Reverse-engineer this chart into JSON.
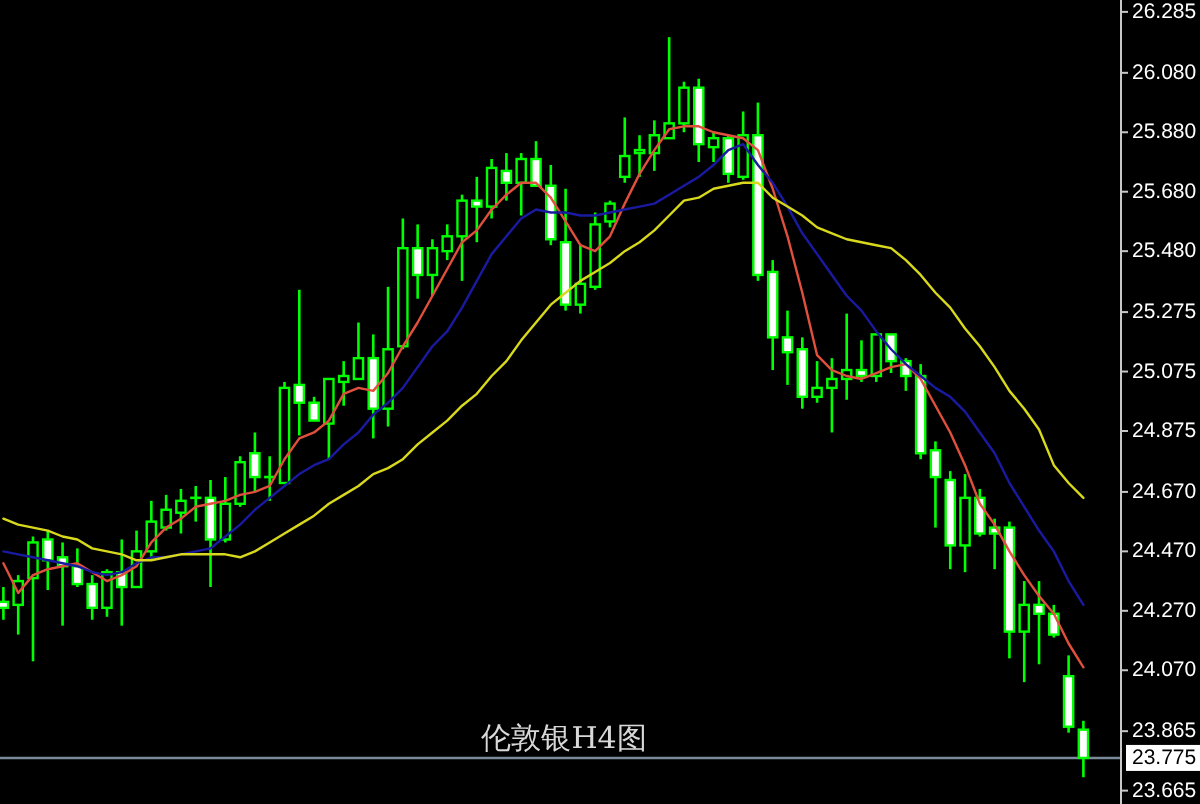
{
  "chart_data": {
    "type": "candlestick",
    "title": "伦敦银H4图",
    "color": "#00ff00",
    "categories": [
      null,
      null,
      null,
      null,
      null,
      null,
      null,
      null,
      null,
      null,
      null,
      null,
      null,
      null,
      null,
      null,
      null,
      null,
      null,
      null,
      null,
      null,
      null,
      null,
      null,
      null,
      null,
      null,
      null,
      null,
      null,
      null,
      null,
      null,
      null,
      null,
      null,
      null,
      null,
      null,
      null,
      null,
      null,
      null,
      null,
      null,
      null,
      null,
      null,
      null,
      null,
      null,
      null,
      null,
      null,
      null,
      null,
      null,
      null,
      null,
      null,
      null,
      null,
      null,
      null,
      null,
      null,
      null,
      null,
      null,
      null,
      null,
      null,
      null
    ],
    "ohlc": [
      [
        24.3,
        24.35,
        24.24,
        24.28
      ],
      [
        24.29,
        24.39,
        24.19,
        24.37
      ],
      [
        24.38,
        24.52,
        24.1,
        24.5
      ],
      [
        24.51,
        24.54,
        24.34,
        24.44
      ],
      [
        24.45,
        24.5,
        24.22,
        24.42
      ],
      [
        24.42,
        24.48,
        24.35,
        24.36
      ],
      [
        24.36,
        24.39,
        24.24,
        24.28
      ],
      [
        24.28,
        24.41,
        24.25,
        24.4
      ],
      [
        24.4,
        24.51,
        24.22,
        24.35
      ],
      [
        24.35,
        24.54,
        24.35,
        24.47
      ],
      [
        24.47,
        24.64,
        24.44,
        24.57
      ],
      [
        24.55,
        24.66,
        24.54,
        24.61
      ],
      [
        24.6,
        24.68,
        24.53,
        24.64
      ],
      [
        24.65,
        24.69,
        24.57,
        24.65
      ],
      [
        24.65,
        24.71,
        24.35,
        24.51
      ],
      [
        24.51,
        24.72,
        24.5,
        24.63
      ],
      [
        24.63,
        24.79,
        24.62,
        24.77
      ],
      [
        24.8,
        24.87,
        24.67,
        24.72
      ],
      [
        24.72,
        24.79,
        24.64,
        24.72
      ],
      [
        24.7,
        25.04,
        24.7,
        25.02
      ],
      [
        25.03,
        25.35,
        24.86,
        24.97
      ],
      [
        24.97,
        24.99,
        24.91,
        24.91
      ],
      [
        24.9,
        25.05,
        24.78,
        25.05
      ],
      [
        25.04,
        25.11,
        24.96,
        25.06
      ],
      [
        25.05,
        25.24,
        25.05,
        25.12
      ],
      [
        25.12,
        25.2,
        24.85,
        24.95
      ],
      [
        24.95,
        25.36,
        24.89,
        25.15
      ],
      [
        25.16,
        25.59,
        25.15,
        25.49
      ],
      [
        25.49,
        25.57,
        25.32,
        25.4
      ],
      [
        25.4,
        25.52,
        25.33,
        25.49
      ],
      [
        25.48,
        25.57,
        25.45,
        25.53
      ],
      [
        25.53,
        25.67,
        25.38,
        25.65
      ],
      [
        25.65,
        25.73,
        25.51,
        25.63
      ],
      [
        25.63,
        25.79,
        25.59,
        25.76
      ],
      [
        25.75,
        25.81,
        25.65,
        25.71
      ],
      [
        25.71,
        25.81,
        25.6,
        25.79
      ],
      [
        25.79,
        25.85,
        25.7,
        25.7
      ],
      [
        25.7,
        25.77,
        25.5,
        25.52
      ],
      [
        25.51,
        25.69,
        25.28,
        25.3
      ],
      [
        25.3,
        25.5,
        25.27,
        25.37
      ],
      [
        25.36,
        25.61,
        25.35,
        25.57
      ],
      [
        25.58,
        25.65,
        25.56,
        25.64
      ],
      [
        25.73,
        25.93,
        25.71,
        25.8
      ],
      [
        25.81,
        25.87,
        25.73,
        25.82
      ],
      [
        25.81,
        25.92,
        25.75,
        25.87
      ],
      [
        25.86,
        26.2,
        25.86,
        25.91
      ],
      [
        25.91,
        26.05,
        25.88,
        26.03
      ],
      [
        26.03,
        26.06,
        25.78,
        25.84
      ],
      [
        25.83,
        25.88,
        25.78,
        25.86
      ],
      [
        25.86,
        25.87,
        25.71,
        25.74
      ],
      [
        25.73,
        25.95,
        25.72,
        25.87
      ],
      [
        25.87,
        25.98,
        25.38,
        25.4
      ],
      [
        25.41,
        25.45,
        25.08,
        25.19
      ],
      [
        25.19,
        25.28,
        25.03,
        25.14
      ],
      [
        25.15,
        25.19,
        24.95,
        24.99
      ],
      [
        24.99,
        25.11,
        24.97,
        25.02
      ],
      [
        25.02,
        25.12,
        24.87,
        25.05
      ],
      [
        25.05,
        25.27,
        24.98,
        25.08
      ],
      [
        25.08,
        25.18,
        25.04,
        25.06
      ],
      [
        25.06,
        25.2,
        25.04,
        25.2
      ],
      [
        25.2,
        25.2,
        25.07,
        25.11
      ],
      [
        25.11,
        25.12,
        25.01,
        25.06
      ],
      [
        25.06,
        25.1,
        24.78,
        24.8
      ],
      [
        24.81,
        24.84,
        24.55,
        24.72
      ],
      [
        24.71,
        24.74,
        24.41,
        24.49
      ],
      [
        24.49,
        24.73,
        24.4,
        24.65
      ],
      [
        24.65,
        24.68,
        24.52,
        24.53
      ],
      [
        24.55,
        24.58,
        24.41,
        24.53
      ],
      [
        24.55,
        24.57,
        24.11,
        24.2
      ],
      [
        24.2,
        24.37,
        24.03,
        24.29
      ],
      [
        24.29,
        24.37,
        24.09,
        24.26
      ],
      [
        24.26,
        24.29,
        24.18,
        24.19
      ],
      [
        24.05,
        24.12,
        23.86,
        23.88
      ],
      [
        23.87,
        23.9,
        23.71,
        23.775
      ]
    ],
    "series": [
      {
        "type": "line",
        "color": "#e0503c",
        "values": [
          24.43,
          24.33,
          24.39,
          24.41,
          24.42,
          24.43,
          24.4,
          24.37,
          24.39,
          24.42,
          24.5,
          24.55,
          24.58,
          24.62,
          24.63,
          24.64,
          24.66,
          24.67,
          24.69,
          24.78,
          24.85,
          24.87,
          24.91,
          25.0,
          25.02,
          25.01,
          25.07,
          25.16,
          25.24,
          25.33,
          25.42,
          25.51,
          25.55,
          25.62,
          25.67,
          25.71,
          25.71,
          25.66,
          25.58,
          25.5,
          25.48,
          25.53,
          25.64,
          25.74,
          25.82,
          25.89,
          25.9,
          25.9,
          25.88,
          25.87,
          25.86,
          25.82,
          25.69,
          25.53,
          25.34,
          25.13,
          25.08,
          25.06,
          25.05,
          25.07,
          25.09,
          25.1,
          25.05,
          24.96,
          24.87,
          24.76,
          24.63,
          24.56,
          24.47,
          24.39,
          24.32,
          24.26,
          24.16,
          24.08
        ]
      },
      {
        "type": "line",
        "color": "#1a1aa0",
        "values": [
          24.47,
          24.46,
          24.45,
          24.44,
          24.43,
          24.42,
          24.4,
          24.39,
          24.4,
          24.43,
          24.45,
          24.45,
          24.46,
          24.47,
          24.48,
          24.52,
          24.56,
          24.61,
          24.65,
          24.69,
          24.73,
          24.76,
          24.78,
          24.83,
          24.87,
          24.93,
          24.97,
          25.02,
          25.09,
          25.16,
          25.21,
          25.29,
          25.38,
          25.47,
          25.53,
          25.59,
          25.62,
          25.61,
          25.61,
          25.6,
          25.6,
          25.61,
          25.62,
          25.63,
          25.64,
          25.67,
          25.7,
          25.73,
          25.77,
          25.82,
          25.84,
          25.77,
          25.71,
          25.63,
          25.54,
          25.47,
          25.4,
          25.33,
          25.28,
          25.21,
          25.15,
          25.1,
          25.06,
          25.02,
          24.99,
          24.94,
          24.87,
          24.8,
          24.7,
          24.62,
          24.54,
          24.47,
          24.37,
          24.29
        ]
      },
      {
        "type": "line",
        "color": "#d8d81c",
        "values": [
          24.58,
          24.56,
          24.55,
          24.54,
          24.52,
          24.51,
          24.48,
          24.47,
          24.46,
          24.44,
          24.44,
          24.45,
          24.46,
          24.46,
          24.46,
          24.46,
          24.45,
          24.47,
          24.5,
          24.53,
          24.56,
          24.59,
          24.63,
          24.66,
          24.69,
          24.73,
          24.75,
          24.78,
          24.83,
          24.87,
          24.91,
          24.96,
          25.0,
          25.06,
          25.11,
          25.18,
          25.24,
          25.3,
          25.34,
          25.38,
          25.41,
          25.44,
          25.48,
          25.51,
          25.55,
          25.6,
          25.65,
          25.66,
          25.69,
          25.7,
          25.71,
          25.71,
          25.66,
          25.63,
          25.6,
          25.56,
          25.54,
          25.52,
          25.51,
          25.5,
          25.49,
          25.45,
          25.4,
          25.34,
          25.29,
          25.22,
          25.16,
          25.09,
          25.01,
          24.95,
          24.88,
          24.76,
          24.7,
          24.65
        ]
      }
    ],
    "ylim": [
      23.62,
      26.325
    ],
    "yticks": [
      26.285,
      {
        "value": 26.08,
        "label": "26.080"
      },
      {
        "value": 25.88,
        "label": "25.880"
      },
      {
        "value": 25.68,
        "label": "25.680"
      },
      {
        "value": 25.48,
        "label": "25.480"
      },
      25.275,
      25.075,
      24.875,
      {
        "value": 24.67,
        "label": "24.670"
      },
      {
        "value": 24.47,
        "label": "24.470"
      },
      {
        "value": 24.27,
        "label": "24.270"
      },
      {
        "value": 24.07,
        "label": "24.070"
      },
      23.865,
      23.665
    ],
    "ref_lines": [
      {
        "axis": "y",
        "value": 23.775,
        "label": "23.775",
        "color": "#7a8a99"
      }
    ]
  }
}
